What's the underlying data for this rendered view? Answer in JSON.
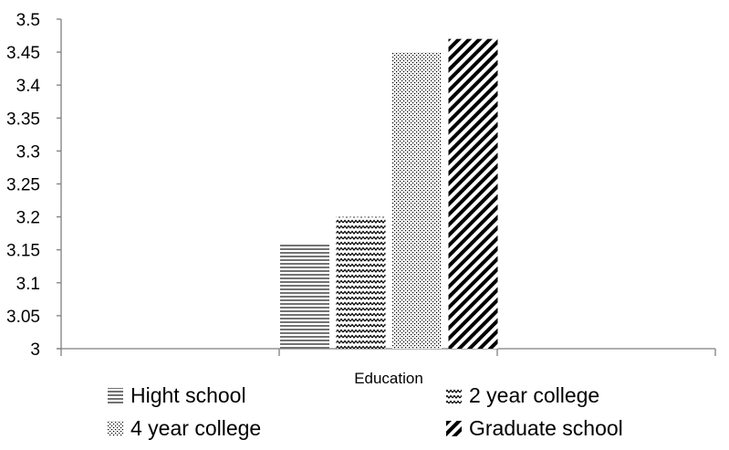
{
  "chart_data": {
    "type": "bar",
    "categories": [
      "Education"
    ],
    "series": [
      {
        "name": "Hight school",
        "values": [
          3.16
        ],
        "pattern": "horizontal-lines"
      },
      {
        "name": "2 year college",
        "values": [
          3.2
        ],
        "pattern": "zigzag"
      },
      {
        "name": "4 year college",
        "values": [
          3.45
        ],
        "pattern": "dots"
      },
      {
        "name": "Graduate school",
        "values": [
          3.47
        ],
        "pattern": "diagonal-lines"
      }
    ],
    "yticks": [
      "3",
      "3.05",
      "3.1",
      "3.15",
      "3.2",
      "3.25",
      "3.3",
      "3.35",
      "3.4",
      "3.45",
      "3.5"
    ],
    "ylim": [
      3,
      3.5
    ],
    "grid": false,
    "legend_position": "bottom",
    "bar_color": "#000000"
  }
}
